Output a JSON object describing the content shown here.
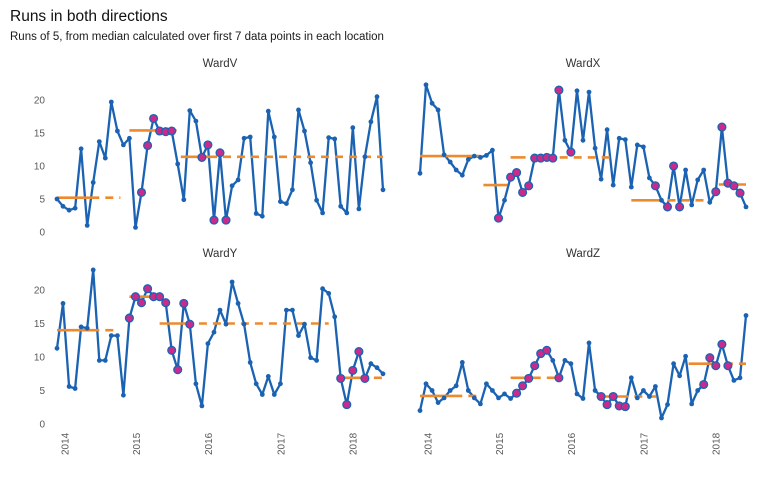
{
  "header": {
    "title": "Runs in both directions",
    "subtitle": "Runs of 5, from median calculated over first 7 data points in each location"
  },
  "chart_data": {
    "type": "line",
    "title": "Runs in both directions",
    "subtitle": "Runs of 5, from median calculated over first 7 data points in each location",
    "legend": "none",
    "grid": "off",
    "x_ticks": [
      "2014",
      "2015",
      "2016",
      "2017",
      "2018"
    ],
    "x_tick_positions": [
      1.3,
      13.2,
      25.1,
      37.1,
      49.0
    ],
    "y_ticks": [
      0,
      5,
      10,
      15,
      20
    ],
    "ylim": [
      0,
      23.5
    ],
    "colors": {
      "series_line": "#1b63b2",
      "data_point": "#1b63b2",
      "highlight_point": "#ca2a8c",
      "median_line": "#ee8a2e",
      "facet_label": "#333333",
      "axis_text": "#595959",
      "title_text": "#111111"
    },
    "panels": [
      {
        "name": "WardV",
        "values": [
          5.0,
          3.9,
          3.3,
          3.6,
          12.6,
          1.0,
          7.5,
          13.7,
          11.2,
          19.7,
          15.3,
          13.2,
          14.2,
          0.7,
          6.0,
          13.1,
          17.2,
          15.3,
          15.2,
          15.3,
          10.3,
          4.9,
          18.4,
          16.8,
          11.3,
          13.2,
          1.8,
          12.0,
          1.8,
          7.0,
          7.9,
          14.2,
          14.4,
          2.8,
          2.4,
          18.3,
          14.4,
          4.6,
          4.3,
          6.4,
          18.5,
          15.3,
          10.5,
          4.8,
          2.9,
          14.3,
          14.1,
          3.9,
          2.9,
          15.8,
          3.5,
          11.4,
          16.7,
          20.5,
          6.4
        ],
        "highlighted": [
          14,
          15,
          16,
          17,
          18,
          19,
          24,
          25,
          26,
          27,
          28
        ],
        "medians": [
          {
            "value": 5.2,
            "solid": [
              0,
              7
            ],
            "dashed": [
              [
                8,
                10.5
              ]
            ]
          },
          {
            "value": 15.4,
            "solid": [
              12,
              17
            ],
            "dashed": [
              [
                18.5,
                20
              ]
            ]
          },
          {
            "value": 11.4,
            "solid": [
              20.5,
              26.5
            ],
            "dashed": [
              [
                27.5,
                54
              ]
            ]
          }
        ]
      },
      {
        "name": "WardX",
        "values": [
          8.9,
          22.3,
          19.5,
          18.5,
          11.7,
          10.6,
          9.4,
          8.6,
          11.0,
          11.5,
          11.3,
          11.6,
          12.4,
          2.1,
          4.8,
          8.3,
          9.0,
          6.0,
          7.0,
          11.2,
          11.2,
          11.3,
          11.2,
          21.5,
          13.9,
          12.1,
          21.4,
          13.9,
          21.2,
          12.7,
          8.0,
          15.5,
          7.1,
          14.2,
          14.0,
          6.8,
          13.2,
          12.9,
          8.2,
          7.0,
          4.8,
          3.8,
          10.0,
          3.8,
          9.4,
          4.1,
          7.9,
          9.4,
          4.5,
          6.1,
          15.9,
          7.4,
          7.0,
          5.9,
          3.8
        ],
        "highlighted": [
          13,
          15,
          16,
          17,
          18,
          19,
          20,
          21,
          22,
          23,
          25,
          39,
          41,
          42,
          43,
          49,
          50,
          51,
          52,
          53
        ],
        "medians": [
          {
            "value": 11.5,
            "solid": [
              0,
              10
            ],
            "dashed": []
          },
          {
            "value": 7.1,
            "solid": [
              10.5,
              14.5
            ],
            "dashed": []
          },
          {
            "value": 11.3,
            "solid": [
              15,
              17.5
            ],
            "dashed": [
              [
                18.5,
                31.5
              ]
            ]
          },
          {
            "value": 4.8,
            "solid": [
              35,
              40
            ],
            "dashed": [
              [
                41,
                48
              ]
            ]
          },
          {
            "value": 7.2,
            "solid": [
              49.5,
              54
            ],
            "dashed": []
          }
        ]
      },
      {
        "name": "WardY",
        "values": [
          11.3,
          18.0,
          5.6,
          5.3,
          14.5,
          14.3,
          23.0,
          9.5,
          9.5,
          13.2,
          13.2,
          4.3,
          15.8,
          19.0,
          18.1,
          20.2,
          19.0,
          19.0,
          18.1,
          11.0,
          8.1,
          18.0,
          14.9,
          6.0,
          2.7,
          12.0,
          13.7,
          17.0,
          14.9,
          21.2,
          18.0,
          14.9,
          9.2,
          6.0,
          4.4,
          7.1,
          4.4,
          6.0,
          17.0,
          17.0,
          13.2,
          14.9,
          9.9,
          9.5,
          20.2,
          19.5,
          16.0,
          6.8,
          2.9,
          8.0,
          10.8,
          6.8,
          9.0,
          8.4,
          7.5
        ],
        "highlighted": [
          12,
          13,
          14,
          15,
          16,
          17,
          18,
          19,
          20,
          21,
          22,
          47,
          48,
          49,
          50,
          51
        ],
        "medians": [
          {
            "value": 14.0,
            "solid": [
              0,
              7
            ],
            "dashed": [
              [
                8,
                9.5
              ]
            ]
          },
          {
            "value": 19.0,
            "solid": [
              12,
              16
            ],
            "dashed": []
          },
          {
            "value": 15.0,
            "solid": [
              17,
              22
            ],
            "dashed": [
              [
                23.5,
                45
              ]
            ]
          },
          {
            "value": 6.9,
            "solid": [
              46.5,
              51.5
            ],
            "dashed": [
              [
                52.5,
                54
              ]
            ]
          }
        ]
      },
      {
        "name": "WardZ",
        "values": [
          2.0,
          6.0,
          5.0,
          3.2,
          3.9,
          5.0,
          5.7,
          9.2,
          5.0,
          3.9,
          3.0,
          6.0,
          5.0,
          3.9,
          4.5,
          3.8,
          4.6,
          5.7,
          6.8,
          8.7,
          10.5,
          11.0,
          9.5,
          6.9,
          9.5,
          9.0,
          4.5,
          3.8,
          12.1,
          5.0,
          4.1,
          2.9,
          4.1,
          2.7,
          2.6,
          6.9,
          3.9,
          5.0,
          4.1,
          5.6,
          0.9,
          2.9,
          9.0,
          7.2,
          10.1,
          3.0,
          5.0,
          5.9,
          9.9,
          8.7,
          11.9,
          8.7,
          6.5,
          6.9,
          16.2
        ],
        "highlighted": [
          16,
          17,
          18,
          19,
          20,
          21,
          23,
          30,
          31,
          32,
          33,
          34,
          47,
          48,
          49,
          50,
          51
        ],
        "medians": [
          {
            "value": 4.2,
            "solid": [
              0,
              7
            ],
            "dashed": [
              [
                8,
                10
              ]
            ]
          },
          {
            "value": 6.9,
            "solid": [
              15,
              20
            ],
            "dashed": [
              [
                21,
                23
              ]
            ]
          },
          {
            "value": 4.1,
            "solid": [
              29.5,
              34.5
            ],
            "dashed": [
              [
                35.5,
                40
              ]
            ]
          },
          {
            "value": 9.0,
            "solid": [
              44.5,
              49.5
            ],
            "dashed": [
              [
                50.5,
                54
              ]
            ]
          }
        ]
      }
    ]
  }
}
